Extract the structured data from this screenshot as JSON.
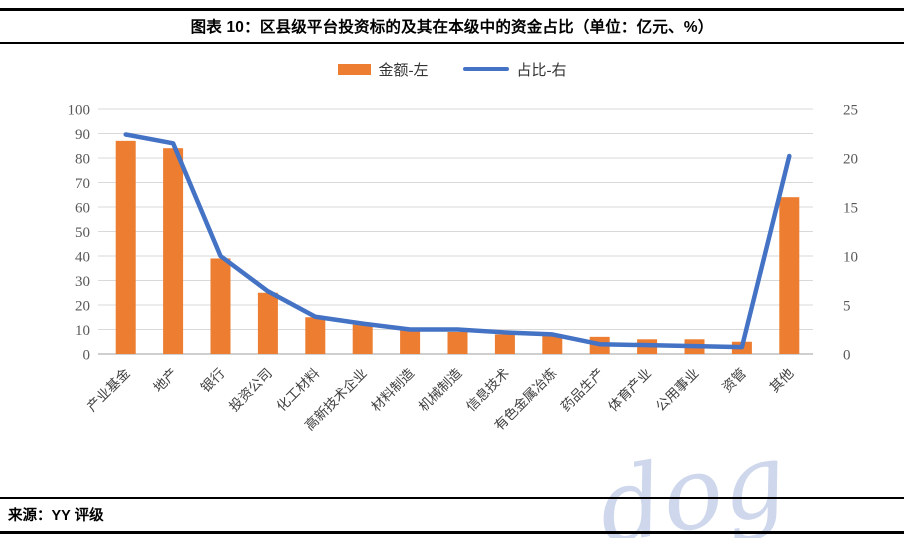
{
  "header": {
    "title": "图表 10：区县级平台投资标的及其在本级中的资金占比（单位：亿元、%）"
  },
  "legend": {
    "items": [
      {
        "label": "金额-左",
        "swatch": "bar",
        "color": "#ED7D31"
      },
      {
        "label": "占比-右",
        "swatch": "line",
        "color": "#4472C4"
      }
    ]
  },
  "chart_data": {
    "type": "bar",
    "title": "图表 10：区县级平台投资标的及其在本级中的资金占比（单位：亿元、%）",
    "categories": [
      "产业基金",
      "地产",
      "银行",
      "投资公司",
      "化工材料",
      "高新技术企业",
      "材料制造",
      "机械制造",
      "信息技术",
      "有色金属冶炼",
      "药品生产",
      "体育产业",
      "公用事业",
      "资管",
      "其他"
    ],
    "series": [
      {
        "name": "金额-左",
        "type": "bar",
        "axis": "left",
        "color": "#ED7D31",
        "values": [
          87,
          84,
          39,
          25,
          15,
          12,
          10,
          9,
          8,
          8,
          7,
          6,
          6,
          5,
          64
        ]
      },
      {
        "name": "占比-右",
        "type": "line",
        "axis": "right",
        "color": "#4472C4",
        "values": [
          22.4,
          21.5,
          10.0,
          6.4,
          3.8,
          3.1,
          2.5,
          2.5,
          2.2,
          2.0,
          1.0,
          0.9,
          0.8,
          0.7,
          20.2
        ]
      }
    ],
    "left_axis": {
      "min": 0,
      "max": 100,
      "ticks": [
        "0",
        "10",
        "20",
        "30",
        "40",
        "50",
        "60",
        "70",
        "80",
        "90",
        "100"
      ]
    },
    "right_axis": {
      "min": 0,
      "max": 25,
      "ticks": [
        "0",
        "5",
        "10",
        "15",
        "20",
        "25"
      ]
    },
    "grid": true,
    "legend_position": "top"
  },
  "footer": {
    "source": "来源：YY 评级"
  },
  "watermark": {
    "text": "dog"
  },
  "colors": {
    "bar": "#ED7D31",
    "line": "#4472C4",
    "gridline": "#D9D9D9",
    "axis_line": "#BFBFBF",
    "axis_text": "#595959",
    "category_text": "#404040"
  }
}
